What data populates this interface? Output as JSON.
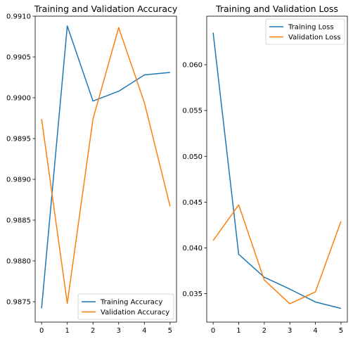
{
  "chart_data": [
    {
      "type": "line",
      "title": "Training and Validation Accuracy",
      "x": [
        0,
        1,
        2,
        3,
        4,
        5
      ],
      "xticks": [
        0,
        1,
        2,
        3,
        4,
        5
      ],
      "xlim": [
        -0.25,
        5.25
      ],
      "ylim": [
        0.98725,
        0.991
      ],
      "yticks": [
        "0.9875",
        "0.9880",
        "0.9885",
        "0.9890",
        "0.9895",
        "0.9900",
        "0.9905",
        "0.9910"
      ],
      "legend_position": "lower-right",
      "series": [
        {
          "name": "Training Accuracy",
          "color": "#1f77b4",
          "values": [
            0.98742,
            0.99088,
            0.98996,
            0.99008,
            0.99028,
            0.99031
          ]
        },
        {
          "name": "Validation Accuracy",
          "color": "#ff7f0e",
          "values": [
            0.98974,
            0.98748,
            0.98974,
            0.99086,
            0.98994,
            0.98867
          ]
        }
      ]
    },
    {
      "type": "line",
      "title": "Training and Validation Loss",
      "x": [
        0,
        1,
        2,
        3,
        4,
        5
      ],
      "xticks": [
        0,
        1,
        2,
        3,
        4,
        5
      ],
      "xlim": [
        -0.25,
        5.25
      ],
      "ylim": [
        0.0319,
        0.0653
      ],
      "yticks": [
        "0.035",
        "0.040",
        "0.045",
        "0.050",
        "0.055",
        "0.060"
      ],
      "legend_position": "upper-right",
      "series": [
        {
          "name": "Training Loss",
          "color": "#1f77b4",
          "values": [
            0.0635,
            0.0393,
            0.0368,
            0.0355,
            0.0341,
            0.0334
          ]
        },
        {
          "name": "Validation Loss",
          "color": "#ff7f0e",
          "values": [
            0.0408,
            0.0447,
            0.0365,
            0.0339,
            0.0352,
            0.0429
          ]
        }
      ]
    }
  ]
}
